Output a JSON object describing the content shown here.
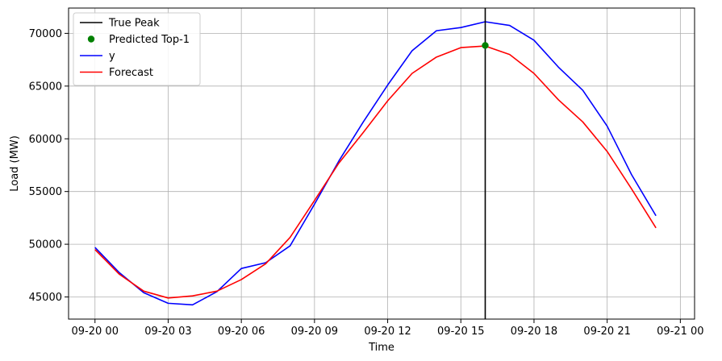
{
  "chart_data": {
    "type": "line",
    "title": "",
    "xlabel": "Time",
    "ylabel": "Load (MW)",
    "x_unit": "datetime",
    "x_start": "2023-09-20 00:00",
    "x_step_hours": 1,
    "xlim": [
      "2023-09-19 22:55",
      "2023-09-21 00:35"
    ],
    "ylim": [
      42900,
      72400
    ],
    "x_ticks": [
      {
        "value": "2023-09-20 00:00",
        "label": "09-20 00"
      },
      {
        "value": "2023-09-20 03:00",
        "label": "09-20 03"
      },
      {
        "value": "2023-09-20 06:00",
        "label": "09-20 06"
      },
      {
        "value": "2023-09-20 09:00",
        "label": "09-20 09"
      },
      {
        "value": "2023-09-20 12:00",
        "label": "09-20 12"
      },
      {
        "value": "2023-09-20 15:00",
        "label": "09-20 15"
      },
      {
        "value": "2023-09-20 18:00",
        "label": "09-20 18"
      },
      {
        "value": "2023-09-20 21:00",
        "label": "09-20 21"
      },
      {
        "value": "2023-09-21 00:00",
        "label": "09-21 00"
      }
    ],
    "y_ticks": [
      45000,
      50000,
      55000,
      60000,
      65000,
      70000
    ],
    "y_tick_labels": [
      "45000",
      "50000",
      "55000",
      "60000",
      "65000",
      "70000"
    ],
    "grid": true,
    "legend_position": "top-left",
    "series": [
      {
        "name": "y",
        "kind": "line",
        "color": "#0000ff",
        "x": [
          "2023-09-20 00:00",
          "2023-09-20 01:00",
          "2023-09-20 02:00",
          "2023-09-20 03:00",
          "2023-09-20 04:00",
          "2023-09-20 05:00",
          "2023-09-20 06:00",
          "2023-09-20 07:00",
          "2023-09-20 08:00",
          "2023-09-20 09:00",
          "2023-09-20 10:00",
          "2023-09-20 11:00",
          "2023-09-20 12:00",
          "2023-09-20 13:00",
          "2023-09-20 14:00",
          "2023-09-20 15:00",
          "2023-09-20 16:00",
          "2023-09-20 17:00",
          "2023-09-20 18:00",
          "2023-09-20 19:00",
          "2023-09-20 20:00",
          "2023-09-20 21:00",
          "2023-09-20 22:00",
          "2023-09-20 23:00"
        ],
        "values": [
          49700,
          47300,
          45400,
          44400,
          44250,
          45500,
          47700,
          48250,
          49850,
          53800,
          57900,
          61600,
          65100,
          68350,
          70250,
          70550,
          71100,
          70750,
          69350,
          66800,
          64600,
          61200,
          56600,
          52700
        ]
      },
      {
        "name": "Forecast",
        "kind": "line",
        "color": "#ff0000",
        "x": [
          "2023-09-20 00:00",
          "2023-09-20 01:00",
          "2023-09-20 02:00",
          "2023-09-20 03:00",
          "2023-09-20 04:00",
          "2023-09-20 05:00",
          "2023-09-20 06:00",
          "2023-09-20 07:00",
          "2023-09-20 08:00",
          "2023-09-20 09:00",
          "2023-09-20 10:00",
          "2023-09-20 11:00",
          "2023-09-20 12:00",
          "2023-09-20 13:00",
          "2023-09-20 14:00",
          "2023-09-20 15:00",
          "2023-09-20 16:00",
          "2023-09-20 17:00",
          "2023-09-20 18:00",
          "2023-09-20 19:00",
          "2023-09-20 20:00",
          "2023-09-20 21:00",
          "2023-09-20 22:00",
          "2023-09-20 23:00"
        ],
        "values": [
          49500,
          47150,
          45550,
          44900,
          45100,
          45550,
          46650,
          48150,
          50650,
          54150,
          57700,
          60600,
          63600,
          66200,
          67750,
          68650,
          68800,
          68000,
          66200,
          63700,
          61600,
          58800,
          55250,
          51550
        ]
      },
      {
        "name": "Predicted Top-1",
        "kind": "scatter",
        "color": "#008000",
        "points": [
          {
            "x": "2023-09-20 16:00",
            "y": 68850
          }
        ]
      },
      {
        "name": "True Peak",
        "kind": "vline",
        "color": "#000000",
        "x": "2023-09-20 16:00"
      }
    ],
    "legend": [
      {
        "label": "True Peak",
        "kind": "line",
        "color": "#000000"
      },
      {
        "label": "Predicted Top-1",
        "kind": "marker",
        "color": "#008000"
      },
      {
        "label": "y",
        "kind": "line",
        "color": "#0000ff"
      },
      {
        "label": "Forecast",
        "kind": "line",
        "color": "#ff0000"
      }
    ]
  }
}
